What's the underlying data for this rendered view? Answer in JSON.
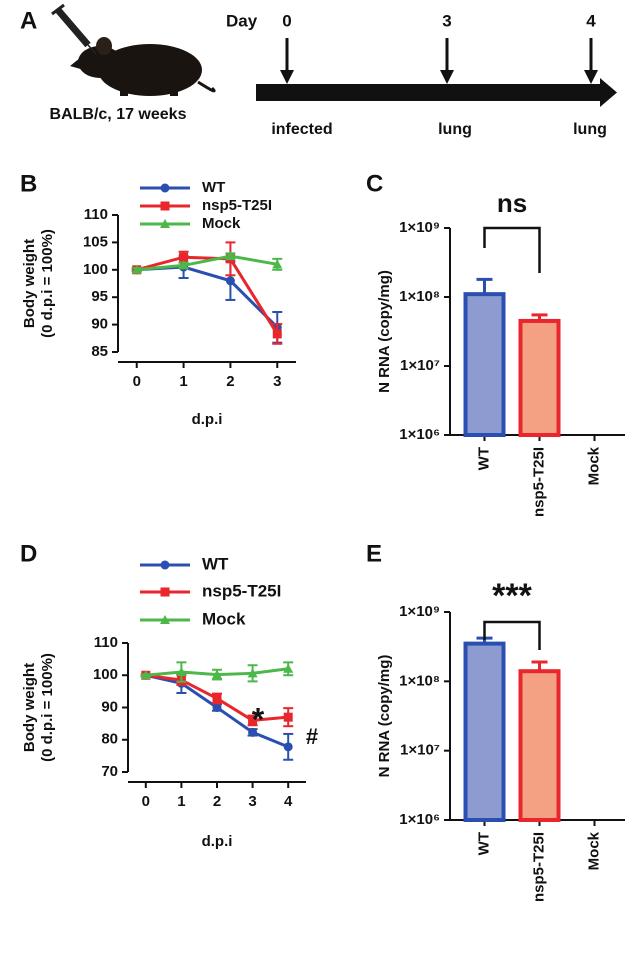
{
  "panel_labels": [
    "A",
    "B",
    "C",
    "D",
    "E"
  ],
  "timeline": {
    "mouse_label": "BALB/c, 17 weeks",
    "day_label": "Day",
    "days": [
      0,
      3,
      4
    ],
    "events": [
      "infected",
      "lung",
      "lung"
    ]
  },
  "chart_data": [
    {
      "type": "line",
      "ylabel": [
        "Body weight",
        "(0 d.p.i = 100%)"
      ],
      "xlabel": "d.p.i",
      "x": [
        0,
        1,
        2,
        3
      ],
      "xlim": [
        -0.4,
        3.4
      ],
      "xticks": [
        0,
        1,
        2,
        3
      ],
      "ylim": [
        85,
        110
      ],
      "yticks": [
        85,
        90,
        95,
        100,
        105,
        110
      ],
      "series": [
        {
          "name": "WT",
          "color": "#2a4fb0",
          "marker": "circle",
          "values": [
            100,
            100.5,
            98,
            89.5
          ],
          "errors": [
            0.3,
            2,
            3.5,
            2.8
          ]
        },
        {
          "name": "nsp5-T25I",
          "color": "#e8262b",
          "marker": "square",
          "values": [
            100,
            102.3,
            102,
            88.3
          ],
          "errors": [
            0.2,
            1,
            3,
            1.8
          ]
        },
        {
          "name": "Mock",
          "color": "#4cb84a",
          "marker": "triangle",
          "values": [
            100,
            100.8,
            102.5,
            101
          ],
          "errors": [
            0.3,
            0.5,
            0.5,
            1
          ]
        }
      ],
      "annotations": []
    },
    {
      "type": "bar",
      "log_scale": true,
      "ylabel": "N RNA (copy/mg)",
      "categories": [
        "WT",
        "nsp5-T25I",
        "Mock"
      ],
      "values": [
        110000000,
        45000000,
        null
      ],
      "errors": [
        70000000,
        10000000,
        null
      ],
      "colors": [
        "#8e9bd0",
        "#f4a183",
        "#888888"
      ],
      "edge_colors": [
        "#2a4fb0",
        "#e8262b",
        "#555555"
      ],
      "ylim": [
        1000000,
        1000000000
      ],
      "yticks": [
        {
          "value": 1000000,
          "label": "1×10⁶"
        },
        {
          "value": 10000000,
          "label": "1×10⁷"
        },
        {
          "value": 100000000,
          "label": "1×10⁸"
        },
        {
          "value": 1000000000,
          "label": "1×10⁹"
        }
      ],
      "significance": "ns"
    },
    {
      "type": "line",
      "ylabel": [
        "Body weight",
        "(0 d.p.i = 100%)"
      ],
      "xlabel": "d.p.i",
      "x": [
        0,
        1,
        2,
        3,
        4
      ],
      "xlim": [
        -0.5,
        4.5
      ],
      "xticks": [
        0,
        1,
        2,
        3,
        4
      ],
      "ylim": [
        70,
        110
      ],
      "yticks": [
        70,
        80,
        90,
        100,
        110
      ],
      "series": [
        {
          "name": "WT",
          "color": "#2a4fb0",
          "marker": "circle",
          "values": [
            100,
            97.5,
            90,
            82.3,
            77.8
          ],
          "errors": [
            0.3,
            3,
            1,
            1,
            4
          ]
        },
        {
          "name": "nsp5-T25I",
          "color": "#e8262b",
          "marker": "square",
          "values": [
            100,
            98.5,
            92.8,
            86,
            87
          ],
          "errors": [
            0.3,
            1.5,
            1.5,
            1.5,
            2.8
          ]
        },
        {
          "name": "Mock",
          "color": "#4cb84a",
          "marker": "triangle",
          "values": [
            100,
            101,
            100.2,
            100.6,
            102
          ],
          "errors": [
            0.3,
            3,
            1.5,
            2.5,
            2
          ]
        }
      ],
      "annotations": [
        "*",
        "#"
      ]
    },
    {
      "type": "bar",
      "log_scale": true,
      "ylabel": "N RNA (copy/mg)",
      "categories": [
        "WT",
        "nsp5-T25I",
        "Mock"
      ],
      "values": [
        350000000,
        140000000,
        null
      ],
      "errors": [
        70000000,
        50000000,
        null
      ],
      "colors": [
        "#8e9bd0",
        "#f4a183",
        "#888888"
      ],
      "edge_colors": [
        "#2a4fb0",
        "#e8262b",
        "#555555"
      ],
      "ylim": [
        1000000,
        1000000000
      ],
      "yticks": [
        {
          "value": 1000000,
          "label": "1×10⁶"
        },
        {
          "value": 10000000,
          "label": "1×10⁷"
        },
        {
          "value": 100000000,
          "label": "1×10⁸"
        },
        {
          "value": 1000000000,
          "label": "1×10⁹"
        }
      ],
      "significance": "***"
    }
  ]
}
